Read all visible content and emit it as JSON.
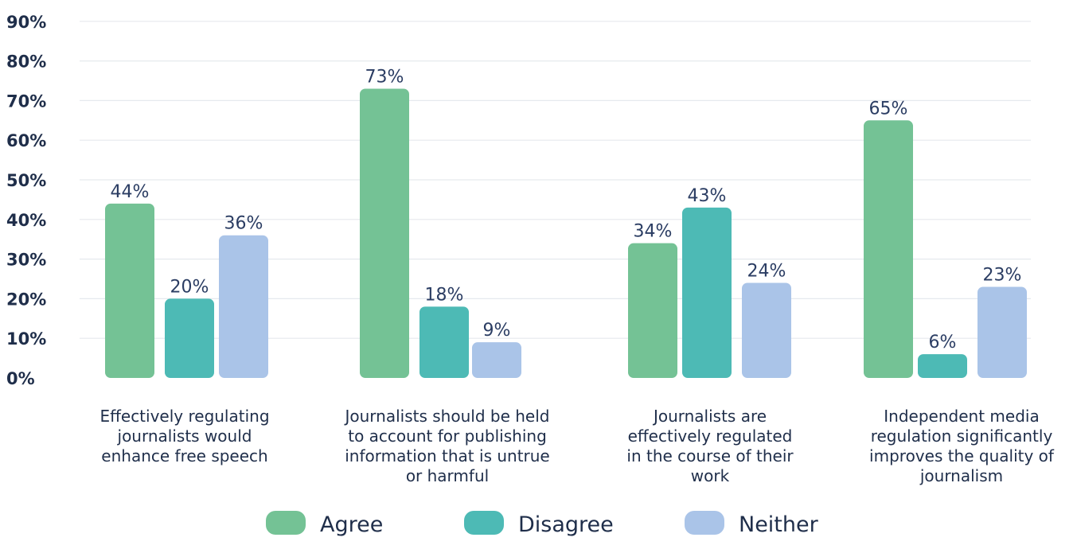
{
  "chart_data": {
    "type": "bar",
    "categories": [
      [
        "Effectively regulating",
        "journalists would",
        "enhance free speech"
      ],
      [
        "Journalists should be held",
        "to account for publishing",
        "information that is untrue",
        "or harmful"
      ],
      [
        "Journalists are",
        "effectively regulated",
        "in the course of their",
        "work"
      ],
      [
        "Independent media",
        "regulation significantly",
        "improves the quality of",
        "journalism"
      ]
    ],
    "series": [
      {
        "name": "Agree",
        "color": "#74c295",
        "values": [
          44,
          73,
          34,
          65
        ]
      },
      {
        "name": "Disagree",
        "color": "#4dbab5",
        "values": [
          20,
          18,
          43,
          6
        ]
      },
      {
        "name": "Neither",
        "color": "#aac4e8",
        "values": [
          36,
          9,
          24,
          23
        ]
      }
    ],
    "value_labels": [
      [
        "44%",
        "73%",
        "34%",
        "65%"
      ],
      [
        "20%",
        "18%",
        "43%",
        "6%"
      ],
      [
        "36%",
        "9%",
        "24%",
        "23%"
      ]
    ],
    "y_ticks": [
      "0%",
      "10%",
      "20%",
      "30%",
      "40%",
      "50%",
      "60%",
      "70%",
      "80%",
      "90%"
    ],
    "ylim": [
      0,
      90
    ],
    "grid": true,
    "legend_position": "bottom-center"
  }
}
